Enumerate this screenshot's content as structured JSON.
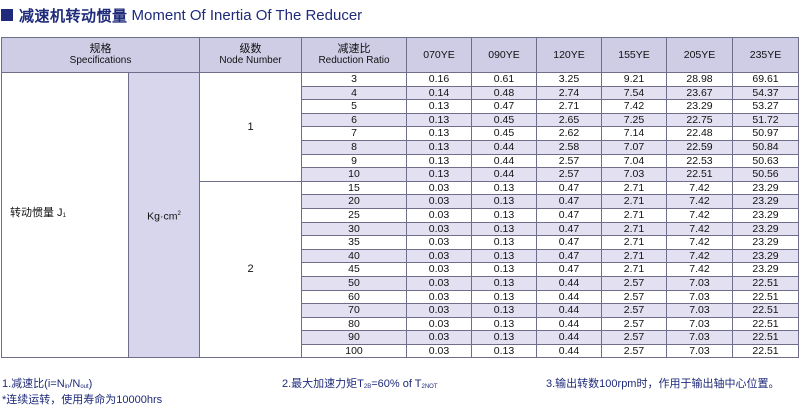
{
  "title": {
    "cn": "减速机转动惯量",
    "en": "Moment Of Inertia Of The Reducer"
  },
  "headers": {
    "spec_cn": "规格",
    "spec_en": "Specifications",
    "node_cn": "级数",
    "node_en": "Node Number",
    "ratio_cn": "减速比",
    "ratio_en": "Reduction Ratio",
    "models": [
      "070YE",
      "090YE",
      "120YE",
      "155YE",
      "205YE",
      "235YE"
    ]
  },
  "row_label": "转动惯量 J",
  "row_label_sub": "1",
  "unit": "Kg·cm",
  "unit_sup": "2",
  "node_groups": [
    {
      "node": "1",
      "rows": [
        {
          "ratio": "3",
          "values": [
            "0.16",
            "0.61",
            "3.25",
            "9.21",
            "28.98",
            "69.61"
          ]
        },
        {
          "ratio": "4",
          "values": [
            "0.14",
            "0.48",
            "2.74",
            "7.54",
            "23.67",
            "54.37"
          ]
        },
        {
          "ratio": "5",
          "values": [
            "0.13",
            "0.47",
            "2.71",
            "7.42",
            "23.29",
            "53.27"
          ]
        },
        {
          "ratio": "6",
          "values": [
            "0.13",
            "0.45",
            "2.65",
            "7.25",
            "22.75",
            "51.72"
          ]
        },
        {
          "ratio": "7",
          "values": [
            "0.13",
            "0.45",
            "2.62",
            "7.14",
            "22.48",
            "50.97"
          ]
        },
        {
          "ratio": "8",
          "values": [
            "0.13",
            "0.44",
            "2.58",
            "7.07",
            "22.59",
            "50.84"
          ]
        },
        {
          "ratio": "9",
          "values": [
            "0.13",
            "0.44",
            "2.57",
            "7.04",
            "22.53",
            "50.63"
          ]
        },
        {
          "ratio": "10",
          "values": [
            "0.13",
            "0.44",
            "2.57",
            "7.03",
            "22.51",
            "50.56"
          ]
        }
      ]
    },
    {
      "node": "2",
      "rows": [
        {
          "ratio": "15",
          "values": [
            "0.03",
            "0.13",
            "0.47",
            "2.71",
            "7.42",
            "23.29"
          ]
        },
        {
          "ratio": "20",
          "values": [
            "0.03",
            "0.13",
            "0.47",
            "2.71",
            "7.42",
            "23.29"
          ]
        },
        {
          "ratio": "25",
          "values": [
            "0.03",
            "0.13",
            "0.47",
            "2.71",
            "7.42",
            "23.29"
          ]
        },
        {
          "ratio": "30",
          "values": [
            "0.03",
            "0.13",
            "0.47",
            "2.71",
            "7.42",
            "23.29"
          ]
        },
        {
          "ratio": "35",
          "values": [
            "0.03",
            "0.13",
            "0.47",
            "2.71",
            "7.42",
            "23.29"
          ]
        },
        {
          "ratio": "40",
          "values": [
            "0.03",
            "0.13",
            "0.47",
            "2.71",
            "7.42",
            "23.29"
          ]
        },
        {
          "ratio": "45",
          "values": [
            "0.03",
            "0.13",
            "0.47",
            "2.71",
            "7.42",
            "23.29"
          ]
        },
        {
          "ratio": "50",
          "values": [
            "0.03",
            "0.13",
            "0.44",
            "2.57",
            "7.03",
            "22.51"
          ]
        },
        {
          "ratio": "60",
          "values": [
            "0.03",
            "0.13",
            "0.44",
            "2.57",
            "7.03",
            "22.51"
          ]
        },
        {
          "ratio": "70",
          "values": [
            "0.03",
            "0.13",
            "0.44",
            "2.57",
            "7.03",
            "22.51"
          ]
        },
        {
          "ratio": "80",
          "values": [
            "0.03",
            "0.13",
            "0.44",
            "2.57",
            "7.03",
            "22.51"
          ]
        },
        {
          "ratio": "90",
          "values": [
            "0.03",
            "0.13",
            "0.44",
            "2.57",
            "7.03",
            "22.51"
          ]
        },
        {
          "ratio": "100",
          "values": [
            "0.03",
            "0.13",
            "0.44",
            "2.57",
            "7.03",
            "22.51"
          ]
        }
      ]
    }
  ],
  "footnotes": {
    "note1_a": "1.减速比(i=N",
    "note1_sub1": "in",
    "note1_b": "/N",
    "note1_sub2": "out",
    "note1_c": ")",
    "note2_a": "2.最大加速力矩T",
    "note2_sub1": "2B",
    "note2_b": "=60% of T",
    "note2_sub2": "2NOT",
    "note3": "3.输出转数100rpm时，作用于输出轴中心位置。",
    "note4": "*连续运转，使用寿命为10000hrs"
  }
}
